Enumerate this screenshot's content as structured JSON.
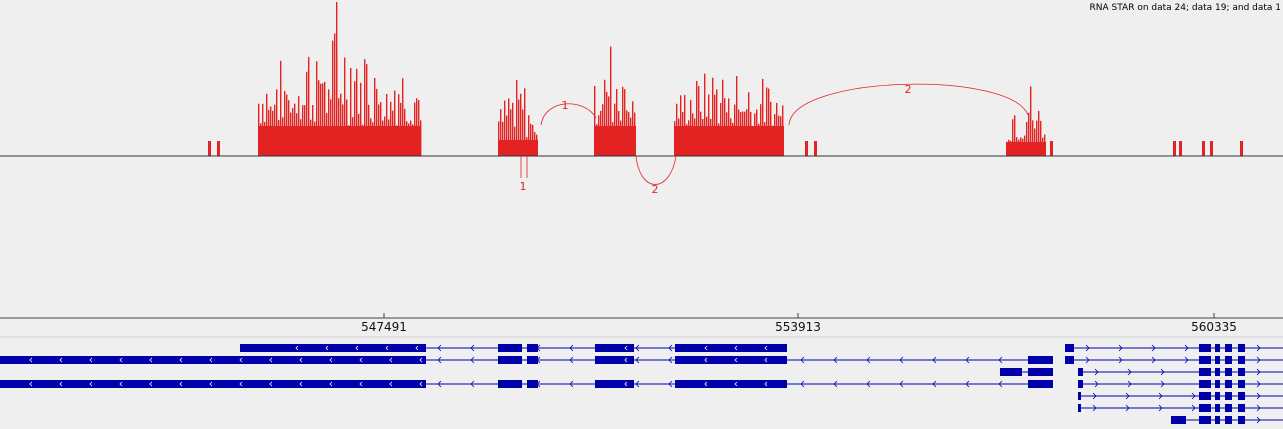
{
  "track": {
    "title": "RNA STAR on data 24; data 19; and data 1",
    "coverage_color": "#e32222",
    "gene_color": "#0000aa"
  },
  "ruler": {
    "ticks": [
      "547491",
      "553913",
      "560335"
    ]
  },
  "junctions": [
    {
      "label": "1",
      "strand": "plus"
    },
    {
      "label": "1",
      "strand": "minus"
    },
    {
      "label": "2",
      "strand": "minus"
    },
    {
      "label": "2",
      "strand": "plus"
    }
  ]
}
